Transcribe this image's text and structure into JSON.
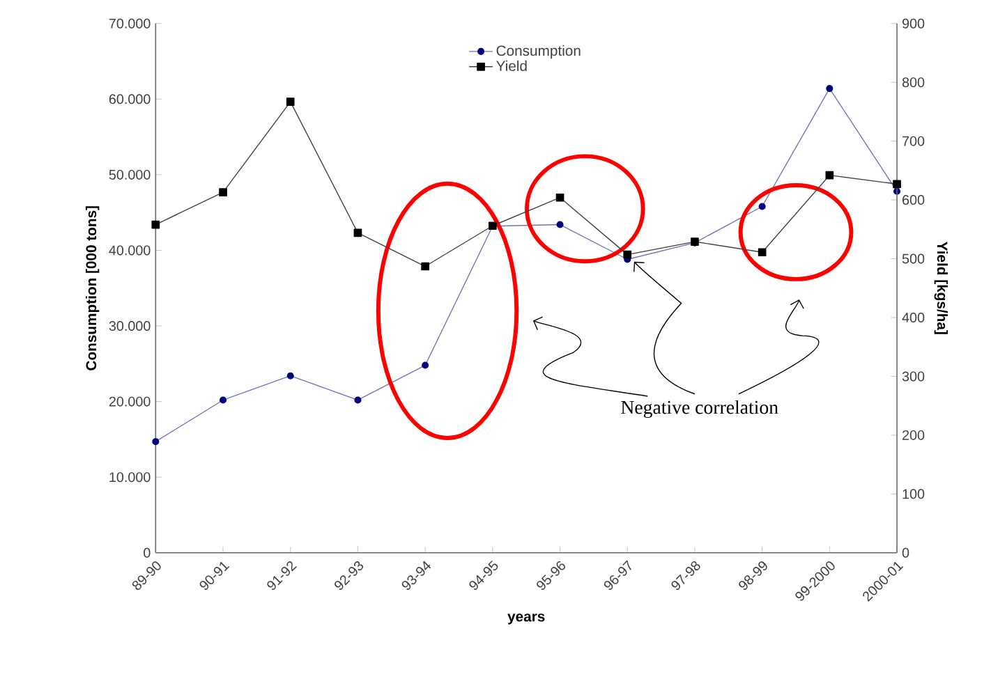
{
  "chart_data": {
    "type": "line",
    "xlabel": "years",
    "ylabel": "Consumption [000 tons]",
    "y2label": "Yield [kgs/ha]",
    "categories": [
      "89-90",
      "90-91",
      "91-92",
      "92-93",
      "93-94",
      "94-95",
      "95-96",
      "96-97",
      "97-98",
      "98-99",
      "99-2000",
      "2000-01"
    ],
    "series": [
      {
        "name": "Consumption",
        "color": "#00007f",
        "marker": "circle",
        "values": [
          14700,
          20200,
          23400,
          20200,
          24800,
          43200,
          43400,
          38800,
          41000,
          45800,
          61400,
          47800
        ]
      },
      {
        "name": "Yield",
        "color": "#000000",
        "marker": "square",
        "axis": "y2",
        "values": [
          558,
          613,
          767,
          544,
          487,
          556,
          604,
          507,
          529,
          511,
          642,
          627
        ]
      }
    ],
    "ylim": [
      0,
      70000
    ],
    "yticks": [
      {
        "value": 0,
        "label": "0"
      },
      {
        "value": 10000,
        "label": "10.000"
      },
      {
        "value": 20000,
        "label": "20.000"
      },
      {
        "value": 30000,
        "label": "30.000"
      },
      {
        "value": 40000,
        "label": "40.000"
      },
      {
        "value": 50000,
        "label": "50.000"
      },
      {
        "value": 60000,
        "label": "60.000"
      },
      {
        "value": 70000,
        "label": "70.000"
      }
    ],
    "y2lim": [
      0,
      900
    ],
    "y2ticks": [
      0,
      100,
      200,
      300,
      400,
      500,
      600,
      700,
      800,
      900
    ],
    "legend": "top",
    "grid": false,
    "annotations": [
      {
        "text": "Negative correlation",
        "x": "96-97",
        "y": 38800
      }
    ]
  }
}
